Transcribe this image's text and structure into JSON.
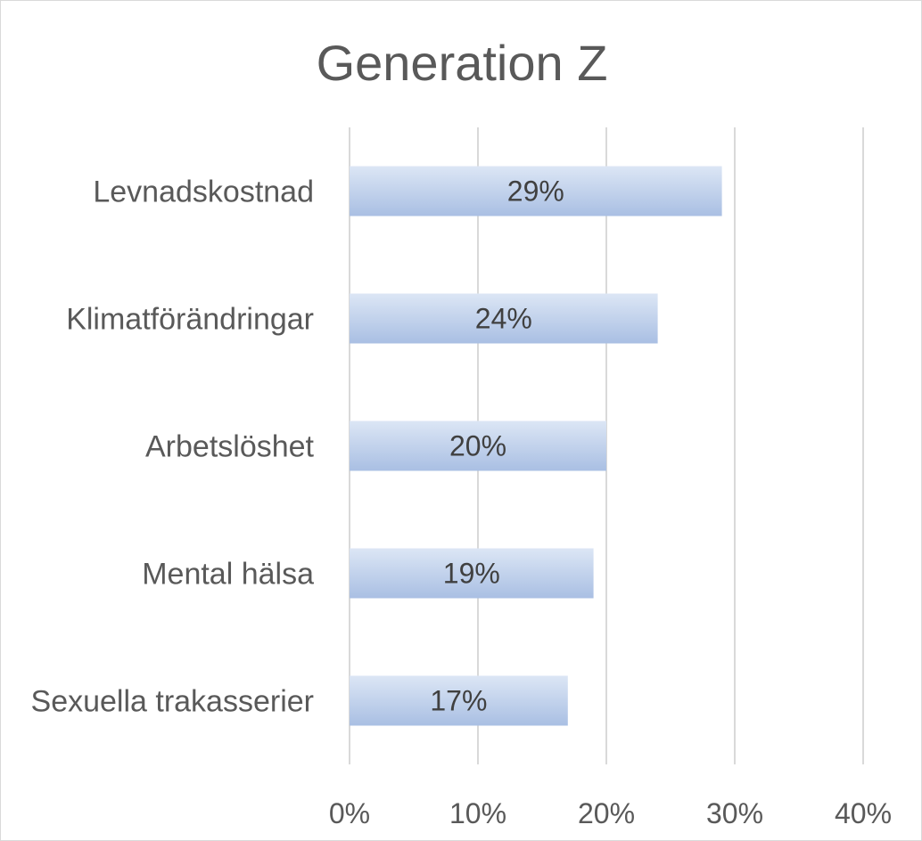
{
  "chart_data": {
    "type": "bar",
    "orientation": "horizontal",
    "title": "Generation Z",
    "categories": [
      "Levnadskostnad",
      "Klimatförändringar",
      "Arbetslöshet",
      "Mental hälsa",
      "Sexuella trakasserier"
    ],
    "values": [
      29,
      24,
      20,
      19,
      17
    ],
    "data_labels": [
      "29%",
      "24%",
      "20%",
      "19%",
      "17%"
    ],
    "x_ticks": [
      "0%",
      "10%",
      "20%",
      "30%",
      "40%"
    ],
    "xlim": [
      0,
      40
    ],
    "grid": true,
    "legend": "none",
    "bar_color_light": "#dce6f5",
    "bar_color_dark": "#a9bfe3",
    "gridline_color": "#d9d9d9"
  }
}
